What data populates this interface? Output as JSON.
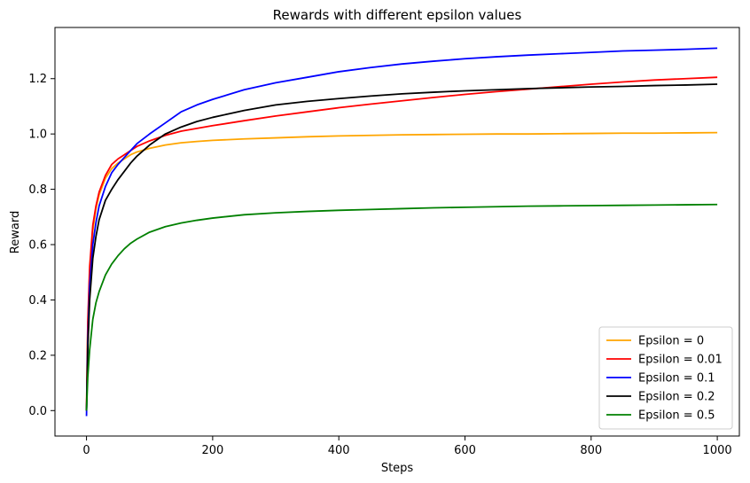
{
  "chart_data": {
    "type": "line",
    "title": "Rewards with different epsilon values",
    "xlabel": "Steps",
    "ylabel": "Reward",
    "xlim": [
      -50,
      1035
    ],
    "ylim": [
      -0.092,
      1.385
    ],
    "xticks": [
      0,
      200,
      400,
      600,
      800,
      1000
    ],
    "xtick_labels": [
      "0",
      "200",
      "400",
      "600",
      "800",
      "1000"
    ],
    "yticks": [
      0.0,
      0.2,
      0.4,
      0.6,
      0.8,
      1.0,
      1.2
    ],
    "ytick_labels": [
      "0.0",
      "0.2",
      "0.4",
      "0.6",
      "0.8",
      "1.0",
      "1.2"
    ],
    "grid": false,
    "legend_position": "lower-right",
    "x": [
      0,
      2,
      5,
      10,
      15,
      20,
      30,
      40,
      50,
      60,
      70,
      80,
      100,
      125,
      150,
      175,
      200,
      250,
      300,
      350,
      400,
      450,
      500,
      550,
      600,
      650,
      700,
      750,
      800,
      850,
      900,
      950,
      1000
    ],
    "series": [
      {
        "name": "Epsilon = 0",
        "color": "#ffa500",
        "values": [
          0.0,
          0.3,
          0.5,
          0.65,
          0.73,
          0.78,
          0.84,
          0.875,
          0.895,
          0.91,
          0.925,
          0.935,
          0.948,
          0.96,
          0.968,
          0.973,
          0.977,
          0.982,
          0.986,
          0.99,
          0.993,
          0.995,
          0.997,
          0.998,
          0.999,
          1.0,
          1.0,
          1.001,
          1.002,
          1.003,
          1.003,
          1.004,
          1.005
        ]
      },
      {
        "name": "Epsilon = 0.01",
        "color": "#ff0000",
        "values": [
          0.0,
          0.32,
          0.52,
          0.67,
          0.74,
          0.79,
          0.85,
          0.89,
          0.91,
          0.925,
          0.94,
          0.955,
          0.975,
          0.995,
          1.01,
          1.02,
          1.03,
          1.048,
          1.065,
          1.08,
          1.095,
          1.108,
          1.12,
          1.132,
          1.143,
          1.153,
          1.162,
          1.171,
          1.18,
          1.188,
          1.195,
          1.2,
          1.205
        ]
      },
      {
        "name": "Epsilon = 0.1",
        "color": "#0000ff",
        "values": [
          -0.02,
          0.25,
          0.45,
          0.6,
          0.68,
          0.74,
          0.81,
          0.86,
          0.89,
          0.915,
          0.94,
          0.965,
          1.0,
          1.04,
          1.08,
          1.105,
          1.125,
          1.16,
          1.185,
          1.205,
          1.225,
          1.24,
          1.253,
          1.263,
          1.272,
          1.279,
          1.285,
          1.29,
          1.295,
          1.3,
          1.303,
          1.306,
          1.31
        ]
      },
      {
        "name": "Epsilon = 0.2",
        "color": "#000000",
        "values": [
          0.0,
          0.22,
          0.4,
          0.55,
          0.63,
          0.69,
          0.76,
          0.8,
          0.835,
          0.865,
          0.895,
          0.92,
          0.96,
          1.0,
          1.025,
          1.045,
          1.06,
          1.085,
          1.105,
          1.118,
          1.128,
          1.137,
          1.145,
          1.151,
          1.156,
          1.16,
          1.164,
          1.167,
          1.17,
          1.172,
          1.175,
          1.177,
          1.18
        ]
      },
      {
        "name": "Epsilon = 0.5",
        "color": "#008000",
        "values": [
          0.0,
          0.12,
          0.22,
          0.33,
          0.39,
          0.43,
          0.49,
          0.53,
          0.56,
          0.585,
          0.605,
          0.62,
          0.645,
          0.665,
          0.678,
          0.688,
          0.696,
          0.708,
          0.715,
          0.72,
          0.724,
          0.727,
          0.73,
          0.733,
          0.735,
          0.737,
          0.739,
          0.74,
          0.741,
          0.742,
          0.743,
          0.744,
          0.745
        ]
      }
    ]
  }
}
